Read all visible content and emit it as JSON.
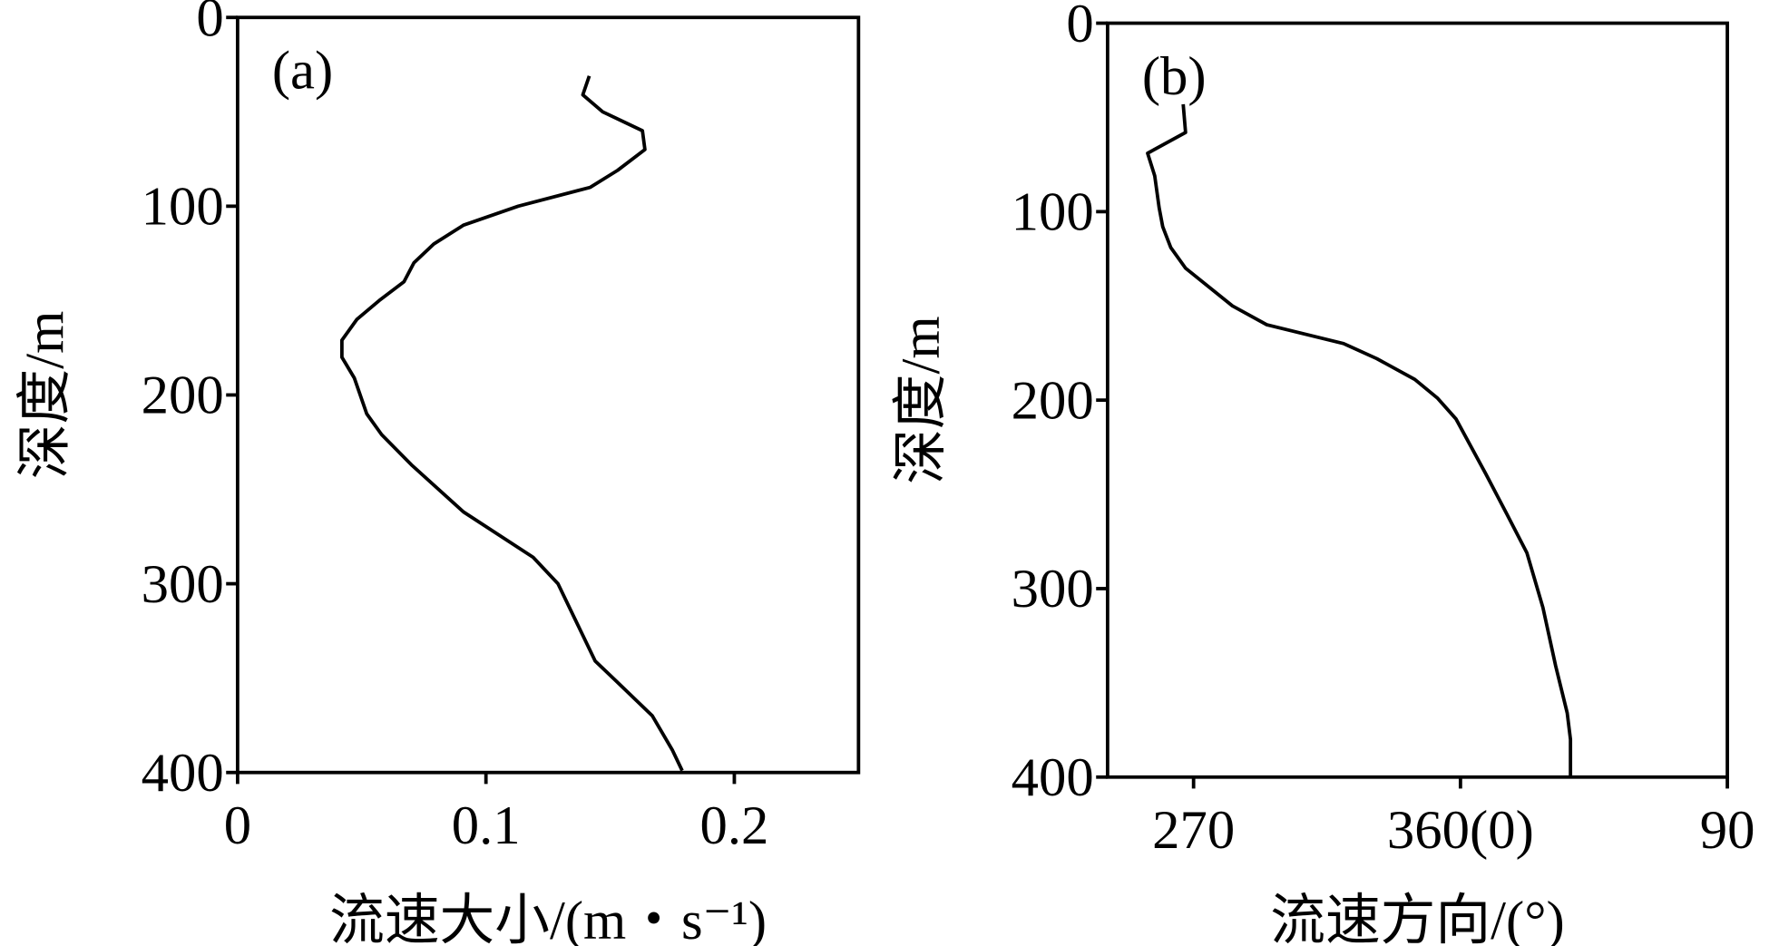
{
  "chart_data": [
    {
      "type": "line",
      "panel_label": "(a)",
      "xlabel": "流速大小/(m・s⁻¹)",
      "ylabel": "深度/m",
      "xlim": [
        0,
        0.25
      ],
      "xticks": [
        0,
        0.1,
        0.2
      ],
      "ylim": [
        0,
        400
      ],
      "yticks": [
        0,
        100,
        200,
        300,
        400
      ],
      "y_inverted": true,
      "series": [
        {
          "color": "#000000",
          "x": [
            0.1416,
            0.139,
            0.147,
            0.163,
            0.164,
            0.153,
            0.142,
            0.113,
            0.091,
            0.079,
            0.071,
            0.067,
            0.057,
            0.048,
            0.042,
            0.042,
            0.047,
            0.052,
            0.058,
            0.07,
            0.091,
            0.119,
            0.129,
            0.144,
            0.152,
            0.167,
            0.175,
            0.179
          ],
          "y": [
            31,
            41,
            50,
            60,
            70,
            81,
            90,
            100,
            110,
            120,
            130,
            140,
            150,
            160,
            171,
            180,
            191,
            210,
            221,
            237,
            262,
            286,
            300,
            341,
            351,
            370,
            388,
            399
          ]
        }
      ]
    },
    {
      "type": "line",
      "panel_label": "(b)",
      "xlabel": "流速方向/(°)",
      "ylabel": "深度/m",
      "xlim": [
        241,
        450
      ],
      "xticks": [
        270,
        {
          "value": 360,
          "label": "360(0)"
        },
        {
          "value": 450,
          "label": "90"
        }
      ],
      "ylim": [
        0,
        400
      ],
      "yticks": [
        0,
        100,
        200,
        300,
        400
      ],
      "y_inverted": true,
      "series": [
        {
          "color": "#000000",
          "x": [
            266.5,
            267.3,
            254.5,
            256.9,
            258.4,
            259.6,
            262.3,
            267.3,
            283.1,
            294.7,
            320.6,
            331.8,
            344.6,
            352.3,
            358.5,
            368.5,
            375.5,
            382.4,
            387.8,
            392.1,
            396.0,
            397.1,
            397.1
          ],
          "y": [
            43,
            58,
            69,
            81,
            98,
            108,
            119,
            130,
            150,
            160,
            170,
            178,
            189,
            199,
            210,
            239,
            260,
            281,
            310,
            341,
            366,
            380,
            400
          ]
        }
      ]
    }
  ]
}
